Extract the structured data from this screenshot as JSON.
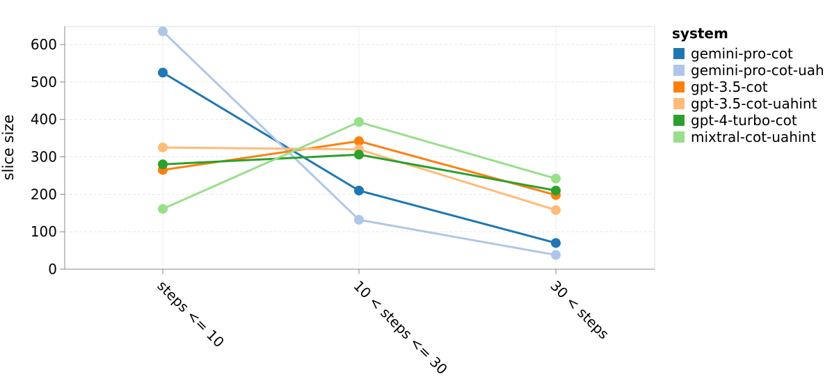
{
  "chart_data": {
    "type": "line",
    "categories": [
      "steps <= 10",
      "10 < steps <= 30",
      "30 < steps"
    ],
    "xlabel": "",
    "ylabel": "slice size",
    "ylim": [
      0,
      650
    ],
    "yticks": [
      0,
      100,
      200,
      300,
      400,
      500,
      600
    ],
    "grid": true,
    "legend": {
      "title": "system",
      "placement": "right"
    },
    "series": [
      {
        "name": "gemini-pro-cot",
        "color": "#1f77b4",
        "values": [
          525,
          210,
          70
        ]
      },
      {
        "name": "gemini-pro-cot-uah",
        "color": "#aec7e8",
        "values": [
          635,
          132,
          38
        ]
      },
      {
        "name": "gpt-3.5-cot",
        "color": "#ff7f0e",
        "values": [
          265,
          342,
          198
        ]
      },
      {
        "name": "gpt-3.5-cot-uahint",
        "color": "#ffbb78",
        "values": [
          325,
          320,
          158
        ]
      },
      {
        "name": "gpt-4-turbo-cot",
        "color": "#2ca02c",
        "values": [
          280,
          306,
          210
        ]
      },
      {
        "name": "mixtral-cot-uahint",
        "color": "#98df8a",
        "values": [
          161,
          393,
          242
        ]
      }
    ]
  }
}
